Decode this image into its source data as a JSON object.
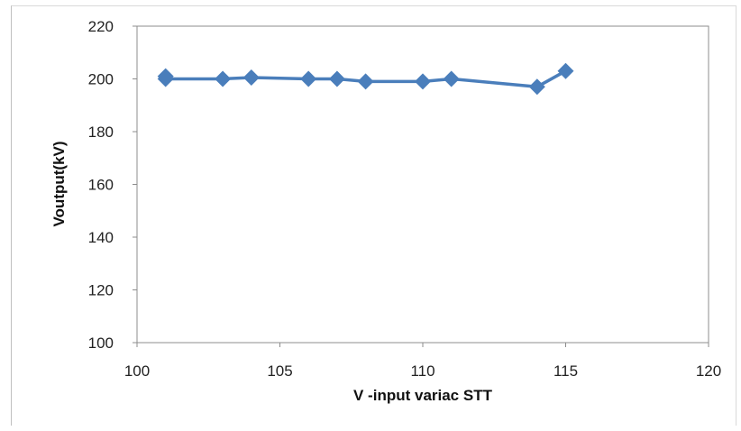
{
  "chart_data": {
    "type": "line",
    "xlabel": "V -input variac STT",
    "ylabel": "Voutput(kV)",
    "xlim": [
      100,
      120
    ],
    "ylim": [
      100,
      220
    ],
    "x_ticks": [
      100,
      105,
      110,
      115,
      120
    ],
    "y_ticks": [
      100,
      120,
      140,
      160,
      180,
      200,
      220
    ],
    "grid": false,
    "legend": "none",
    "series": [
      {
        "marker": "diamond",
        "color": "#4a7ebb",
        "points": [
          {
            "x": 101,
            "y": 201
          },
          {
            "x": 101,
            "y": 200
          },
          {
            "x": 103,
            "y": 200
          },
          {
            "x": 104,
            "y": 200.5
          },
          {
            "x": 106,
            "y": 200
          },
          {
            "x": 107,
            "y": 200
          },
          {
            "x": 108,
            "y": 199
          },
          {
            "x": 110,
            "y": 199
          },
          {
            "x": 111,
            "y": 200
          },
          {
            "x": 114,
            "y": 197
          },
          {
            "x": 115,
            "y": 203
          }
        ]
      }
    ]
  }
}
